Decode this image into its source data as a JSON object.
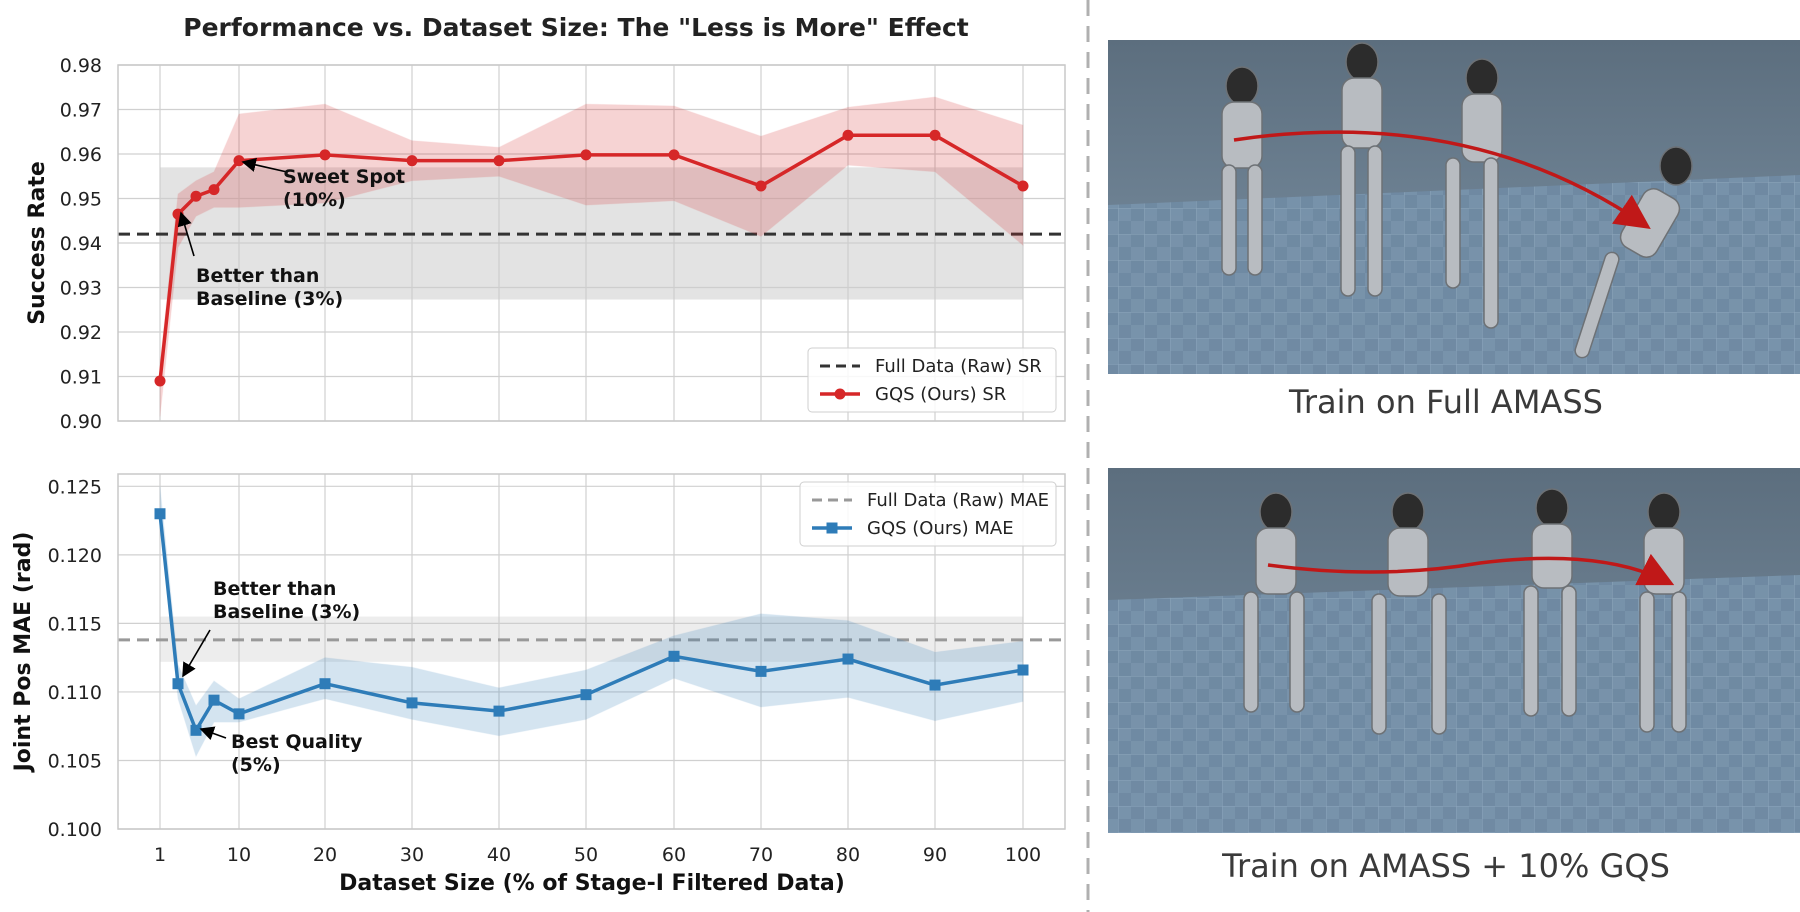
{
  "figure_title": "Performance vs. Dataset Size: The \"Less is More\" Effect",
  "colors": {
    "sr": "#d62728",
    "mae": "#2e7cb8",
    "baseline_sr": "#333333",
    "baseline_mae": "#999999",
    "arrow": "#c01818"
  },
  "chart_data": [
    {
      "type": "line",
      "ylabel": "Success Rate",
      "xlabel": "",
      "x": [
        1,
        3,
        5,
        7,
        10,
        20,
        30,
        40,
        50,
        60,
        70,
        80,
        90,
        100
      ],
      "x_ticks": [
        1,
        10,
        20,
        30,
        40,
        50,
        60,
        70,
        80,
        90,
        100
      ],
      "ylim": [
        0.9,
        0.98
      ],
      "y_ticks": [
        "0.90",
        "0.91",
        "0.92",
        "0.93",
        "0.94",
        "0.95",
        "0.96",
        "0.97",
        "0.98"
      ],
      "grid": true,
      "legend_position": "lower-right",
      "series": [
        {
          "name": "GQS (Ours) SR",
          "marker": "circle",
          "values": [
            0.909,
            0.9465,
            0.9505,
            0.952,
            0.9585,
            0.9598,
            0.9585,
            0.9585,
            0.9598,
            0.9598,
            0.9528,
            0.9642,
            0.9642,
            0.9528
          ],
          "lower": [
            0.901,
            0.939,
            0.946,
            0.948,
            0.948,
            0.949,
            0.954,
            0.955,
            0.9485,
            0.9495,
            0.9415,
            0.9575,
            0.956,
            0.9395
          ],
          "upper": [
            0.913,
            0.951,
            0.954,
            0.956,
            0.969,
            0.9712,
            0.963,
            0.9615,
            0.9712,
            0.9708,
            0.964,
            0.9705,
            0.9728,
            0.9665
          ]
        },
        {
          "name": "Full Data (Raw) SR",
          "style": "dashed",
          "value": 0.942,
          "band": [
            0.9273,
            0.957
          ]
        }
      ],
      "annotations": [
        {
          "text_lines": [
            "Sweet Spot",
            "(10%)"
          ],
          "x": 10,
          "y": 0.9585
        },
        {
          "text_lines": [
            "Better than",
            "Baseline (3%)"
          ],
          "x": 3,
          "y": 0.9465
        }
      ]
    },
    {
      "type": "line",
      "ylabel": "Joint Pos MAE (rad)",
      "xlabel": "Dataset Size (% of Stage-I Filtered Data)",
      "x": [
        1,
        3,
        5,
        7,
        10,
        20,
        30,
        40,
        50,
        60,
        70,
        80,
        90,
        100
      ],
      "x_ticks": [
        1,
        10,
        20,
        30,
        40,
        50,
        60,
        70,
        80,
        90,
        100
      ],
      "ylim": [
        0.1,
        0.1259
      ],
      "y_ticks": [
        "0.100",
        "0.105",
        "0.110",
        "0.115",
        "0.120",
        "0.125"
      ],
      "grid": true,
      "legend_position": "upper-right",
      "series": [
        {
          "name": "GQS (Ours) MAE",
          "marker": "square",
          "values": [
            0.123,
            0.1106,
            0.1072,
            0.1094,
            0.1084,
            0.1106,
            0.1092,
            0.1086,
            0.1098,
            0.1126,
            0.1115,
            0.1124,
            0.1105,
            0.1116
          ],
          "lower": [
            0.1225,
            0.1095,
            0.1053,
            0.1078,
            0.1078,
            0.1095,
            0.108,
            0.1068,
            0.108,
            0.111,
            0.1089,
            0.1096,
            0.1079,
            0.1093
          ],
          "upper": [
            0.125,
            0.112,
            0.109,
            0.1108,
            0.1095,
            0.1125,
            0.1118,
            0.1103,
            0.1116,
            0.1141,
            0.1157,
            0.1152,
            0.1129,
            0.1137
          ]
        },
        {
          "name": "Full Data (Raw) MAE",
          "style": "dashed",
          "value": 0.1138,
          "band": [
            0.1122,
            0.1155
          ]
        }
      ],
      "annotations": [
        {
          "text_lines": [
            "Better than",
            "Baseline (3%)"
          ],
          "x": 3,
          "y": 0.1106
        },
        {
          "text_lines": [
            "Best Quality",
            "(5%)"
          ],
          "x": 5,
          "y": 0.1072
        }
      ]
    }
  ],
  "images": [
    {
      "caption": "Train on Full AMASS"
    },
    {
      "caption": "Train on AMASS + 10% GQS"
    }
  ]
}
